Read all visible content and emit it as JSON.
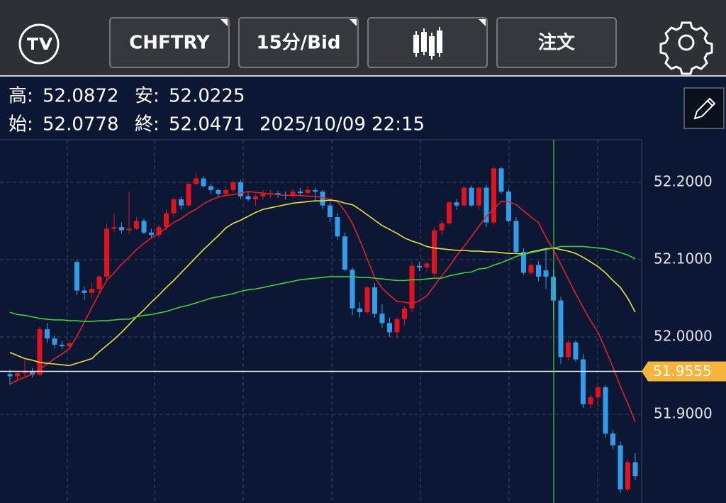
{
  "toolbar": {
    "symbol": "CHFTRY",
    "interval": "15分/Bid",
    "order": "注文"
  },
  "info": {
    "high_label": "高:",
    "low_label": "安:",
    "open_label": "始:",
    "close_label": "終:",
    "datetime": "2025/10/09 22:15"
  },
  "chart_data": {
    "type": "candlestick",
    "up_color": "#e3121c",
    "down_color": "#2f9de9",
    "ylim": [
      51.7853,
      52.255
    ],
    "yticks": [
      {
        "value": 52.2,
        "label": "52.2000"
      },
      {
        "value": 52.1,
        "label": "52.1000"
      },
      {
        "value": 52.0,
        "label": "52.0000"
      },
      {
        "value": 51.9,
        "label": "51.9000"
      }
    ],
    "grid": true,
    "last_price": 51.9555,
    "open": [
      51.952,
      51.949,
      51.953,
      51.955,
      51.951,
      52.01,
      51.998,
      51.99,
      51.988,
      52.097,
      52.06,
      52.057,
      52.062,
      52.078,
      52.14,
      52.142,
      52.138,
      52.14,
      52.15,
      52.135,
      52.132,
      52.142,
      52.16,
      52.178,
      52.17,
      52.198,
      52.205,
      52.195,
      52.19,
      52.185,
      52.19,
      52.2,
      52.182,
      52.178,
      52.182,
      52.185,
      52.186,
      52.184,
      52.183,
      52.188,
      52.186,
      52.19,
      52.188,
      52.17,
      52.155,
      52.13,
      52.087,
      52.037,
      52.032,
      52.064,
      52.03,
      52.018,
      52.006,
      52.023,
      52.037,
      52.092,
      52.09,
      52.082,
      52.138,
      52.147,
      52.174,
      52.17,
      52.193,
      52.17,
      52.193,
      52.148,
      52.218,
      52.188,
      52.15,
      52.11,
      52.083,
      52.093,
      52.086,
      52.0778,
      52.0471,
      51.974,
      51.993,
      51.971,
      51.913,
      51.922,
      51.935,
      51.875,
      51.86,
      51.803,
      51.838
    ],
    "high": [
      51.958,
      51.956,
      51.97,
      51.96,
      52.013,
      52.018,
      52.002,
      51.995,
      51.995,
      52.1,
      52.065,
      52.07,
      52.08,
      52.147,
      52.16,
      52.148,
      52.188,
      52.155,
      52.153,
      52.14,
      52.145,
      52.165,
      52.18,
      52.182,
      52.2,
      52.213,
      52.208,
      52.198,
      52.192,
      52.195,
      52.202,
      52.203,
      52.188,
      52.185,
      52.19,
      52.19,
      52.189,
      52.188,
      52.192,
      52.193,
      52.195,
      52.193,
      52.19,
      52.176,
      52.16,
      52.135,
      52.09,
      52.045,
      52.066,
      52.07,
      52.042,
      52.025,
      52.026,
      52.04,
      52.098,
      52.097,
      52.097,
      52.142,
      52.15,
      52.176,
      52.178,
      52.195,
      52.196,
      52.195,
      52.197,
      52.22,
      52.22,
      52.192,
      52.155,
      52.115,
      52.095,
      52.098,
      52.112,
      52.0872,
      52.052,
      51.996,
      51.996,
      51.978,
      51.925,
      51.938,
      51.938,
      51.88,
      51.865,
      51.842,
      51.85
    ],
    "low": [
      51.938,
      51.945,
      51.948,
      51.948,
      51.95,
      51.992,
      51.985,
      51.984,
      51.985,
      52.054,
      52.048,
      52.05,
      52.055,
      52.072,
      52.135,
      52.134,
      52.133,
      52.138,
      52.133,
      52.128,
      52.128,
      52.138,
      52.155,
      52.165,
      52.168,
      52.195,
      52.193,
      52.185,
      52.18,
      52.182,
      52.187,
      52.178,
      52.175,
      52.17,
      52.178,
      52.18,
      52.18,
      52.178,
      52.18,
      52.182,
      52.184,
      52.175,
      52.165,
      52.148,
      52.125,
      52.085,
      52.028,
      52.025,
      52.03,
      52.025,
      52.012,
      52.0,
      51.998,
      52.015,
      52.032,
      52.085,
      52.085,
      52.078,
      52.132,
      52.145,
      52.165,
      52.168,
      52.168,
      52.165,
      52.142,
      52.145,
      52.185,
      52.148,
      52.108,
      52.08,
      52.08,
      52.072,
      52.062,
      52.0225,
      51.965,
      51.97,
      51.968,
      51.908,
      51.908,
      51.91,
      51.87,
      51.855,
      51.798,
      51.8,
      51.815
    ],
    "close": [
      51.949,
      51.953,
      51.955,
      51.951,
      52.01,
      51.998,
      51.99,
      51.988,
      51.992,
      52.06,
      52.057,
      52.062,
      52.078,
      52.14,
      52.142,
      52.138,
      52.14,
      52.15,
      52.135,
      52.132,
      52.142,
      52.16,
      52.178,
      52.17,
      52.198,
      52.205,
      52.195,
      52.19,
      52.185,
      52.19,
      52.2,
      52.182,
      52.178,
      52.182,
      52.185,
      52.186,
      52.184,
      52.183,
      52.188,
      52.186,
      52.19,
      52.188,
      52.17,
      52.155,
      52.13,
      52.087,
      52.037,
      52.032,
      52.064,
      52.03,
      52.018,
      52.006,
      52.023,
      52.037,
      52.092,
      52.09,
      52.095,
      52.138,
      52.147,
      52.174,
      52.17,
      52.193,
      52.17,
      52.193,
      52.148,
      52.218,
      52.188,
      52.15,
      52.11,
      52.083,
      52.093,
      52.078,
      52.078,
      52.0471,
      51.974,
      51.993,
      51.971,
      51.913,
      51.922,
      51.935,
      51.875,
      51.86,
      51.803,
      51.838,
      51.82
    ],
    "series": [
      {
        "color": "#e3202a",
        "values": [
          51.939,
          51.944,
          51.948,
          51.952,
          51.958,
          51.965,
          51.972,
          51.978,
          51.985,
          52.001,
          52.019,
          52.038,
          52.056,
          52.073,
          52.083,
          52.094,
          52.103,
          52.113,
          52.121,
          52.128,
          52.134,
          52.141,
          52.148,
          52.153,
          52.16,
          52.165,
          52.172,
          52.177,
          52.181,
          52.183,
          52.184,
          52.186,
          52.188,
          52.187,
          52.186,
          52.185,
          52.184,
          52.183,
          52.183,
          52.183,
          52.182,
          52.182,
          52.18,
          52.178,
          52.175,
          52.163,
          52.147,
          52.125,
          52.101,
          52.077,
          52.063,
          52.054,
          52.046,
          52.045,
          52.043,
          52.047,
          52.053,
          52.066,
          52.079,
          52.091,
          52.105,
          52.117,
          52.13,
          52.143,
          52.156,
          52.166,
          52.175,
          52.175,
          52.171,
          52.163,
          52.155,
          52.148,
          52.129,
          52.113,
          52.094,
          52.075,
          52.056,
          52.038,
          52.021,
          52.006,
          51.984,
          51.961,
          51.936,
          51.914,
          51.89
        ]
      },
      {
        "color": "#e9e13c",
        "values": [
          51.98,
          51.976,
          51.972,
          51.97,
          51.967,
          51.966,
          51.965,
          51.964,
          51.963,
          51.966,
          51.969,
          51.972,
          51.981,
          51.989,
          51.997,
          52.006,
          52.016,
          52.026,
          52.035,
          52.045,
          52.054,
          52.064,
          52.073,
          52.083,
          52.093,
          52.103,
          52.113,
          52.122,
          52.131,
          52.141,
          52.147,
          52.151,
          52.156,
          52.161,
          52.165,
          52.167,
          52.169,
          52.171,
          52.173,
          52.174,
          52.175,
          52.176,
          52.176,
          52.177,
          52.176,
          52.173,
          52.171,
          52.165,
          52.158,
          52.151,
          52.144,
          52.139,
          52.134,
          52.128,
          52.124,
          52.121,
          52.117,
          52.115,
          52.114,
          52.113,
          52.112,
          52.112,
          52.111,
          52.111,
          52.11,
          52.11,
          52.109,
          52.108,
          52.108,
          52.107,
          52.11,
          52.112,
          52.114,
          52.115,
          52.113,
          52.111,
          52.108,
          52.103,
          52.097,
          52.091,
          52.083,
          52.073,
          52.064,
          52.05,
          52.032
        ]
      },
      {
        "color": "#3fcf3a",
        "values": [
          52.032,
          52.029,
          52.028,
          52.026,
          52.024,
          52.023,
          52.022,
          52.022,
          52.021,
          52.021,
          52.02,
          52.02,
          52.021,
          52.021,
          52.022,
          52.023,
          52.023,
          52.026,
          52.028,
          52.029,
          52.031,
          52.033,
          52.036,
          52.039,
          52.041,
          52.044,
          52.047,
          52.05,
          52.052,
          52.054,
          52.056,
          52.059,
          52.061,
          52.062,
          52.064,
          52.066,
          52.068,
          52.07,
          52.072,
          52.074,
          52.075,
          52.076,
          52.077,
          52.078,
          52.078,
          52.078,
          52.078,
          52.077,
          52.077,
          52.076,
          52.075,
          52.074,
          52.073,
          52.073,
          52.074,
          52.074,
          52.075,
          52.076,
          52.076,
          52.079,
          52.081,
          52.083,
          52.084,
          52.088,
          52.089,
          52.093,
          52.096,
          52.1,
          52.104,
          52.107,
          52.109,
          52.111,
          52.113,
          52.115,
          52.117,
          52.117,
          52.117,
          52.117,
          52.116,
          52.115,
          52.114,
          52.112,
          52.109,
          52.106,
          52.101
        ]
      }
    ]
  }
}
